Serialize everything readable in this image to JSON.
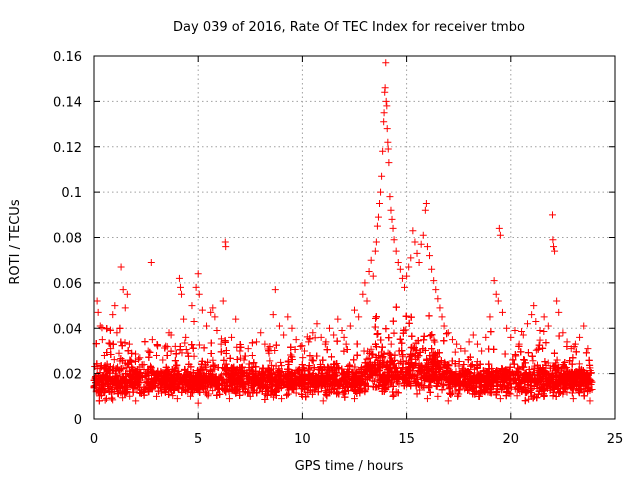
{
  "chart_data": {
    "type": "scatter",
    "title": "Day 039 of 2016, Rate Of TEC Index for receiver tmbo",
    "xlabel": "GPS time / hours",
    "ylabel": "ROTI / TECUs",
    "xlim": [
      0,
      25
    ],
    "ylim": [
      0,
      0.16
    ],
    "xticks": [
      0,
      5,
      10,
      15,
      20,
      25
    ],
    "xtick_labels": [
      "0",
      "5",
      "10",
      "15",
      "20",
      "25"
    ],
    "yticks": [
      0,
      0.02,
      0.04,
      0.06,
      0.08,
      0.1,
      0.12,
      0.14,
      0.16
    ],
    "ytick_labels": [
      "0",
      "0.02",
      "0.04",
      "0.06",
      "0.08",
      "0.1",
      "0.12",
      "0.14",
      "0.16"
    ],
    "grid": true,
    "marker": "+",
    "series_color": "#ff0000",
    "series": [
      {
        "name": "ROTI",
        "points": [
          [
            0.05,
            0.018
          ],
          [
            0.15,
            0.052
          ],
          [
            0.2,
            0.047
          ],
          [
            0.3,
            0.041
          ],
          [
            0.4,
            0.035
          ],
          [
            0.5,
            0.028
          ],
          [
            0.6,
            0.022
          ],
          [
            0.8,
            0.031
          ],
          [
            0.9,
            0.046
          ],
          [
            1.0,
            0.05
          ],
          [
            1.1,
            0.038
          ],
          [
            1.2,
            0.029
          ],
          [
            1.3,
            0.067
          ],
          [
            1.4,
            0.057
          ],
          [
            1.5,
            0.049
          ],
          [
            1.6,
            0.055
          ],
          [
            1.7,
            0.033
          ],
          [
            1.8,
            0.025
          ],
          [
            2.0,
            0.021
          ],
          [
            2.2,
            0.027
          ],
          [
            2.4,
            0.024
          ],
          [
            2.6,
            0.03
          ],
          [
            2.75,
            0.069
          ],
          [
            2.8,
            0.035
          ],
          [
            3.0,
            0.028
          ],
          [
            3.3,
            0.026
          ],
          [
            3.6,
            0.038
          ],
          [
            3.7,
            0.037
          ],
          [
            3.9,
            0.032
          ],
          [
            4.1,
            0.062
          ],
          [
            4.15,
            0.058
          ],
          [
            4.2,
            0.055
          ],
          [
            4.3,
            0.044
          ],
          [
            4.4,
            0.036
          ],
          [
            4.5,
            0.029
          ],
          [
            4.7,
            0.05
          ],
          [
            4.8,
            0.043
          ],
          [
            4.9,
            0.058
          ],
          [
            5.0,
            0.064
          ],
          [
            5.05,
            0.055
          ],
          [
            5.2,
            0.048
          ],
          [
            5.4,
            0.041
          ],
          [
            5.6,
            0.047
          ],
          [
            5.7,
            0.049
          ],
          [
            5.8,
            0.045
          ],
          [
            5.9,
            0.039
          ],
          [
            6.1,
            0.033
          ],
          [
            6.2,
            0.052
          ],
          [
            6.3,
            0.078
          ],
          [
            6.32,
            0.076
          ],
          [
            6.6,
            0.036
          ],
          [
            6.8,
            0.044
          ],
          [
            7.0,
            0.03
          ],
          [
            7.2,
            0.026
          ],
          [
            7.4,
            0.031
          ],
          [
            7.6,
            0.028
          ],
          [
            7.8,
            0.034
          ],
          [
            8.0,
            0.038
          ],
          [
            8.2,
            0.033
          ],
          [
            8.4,
            0.029
          ],
          [
            8.6,
            0.046
          ],
          [
            8.7,
            0.057
          ],
          [
            8.9,
            0.041
          ],
          [
            9.1,
            0.037
          ],
          [
            9.3,
            0.045
          ],
          [
            9.5,
            0.04
          ],
          [
            9.7,
            0.035
          ],
          [
            9.9,
            0.032
          ],
          [
            10.1,
            0.03
          ],
          [
            10.3,
            0.034
          ],
          [
            10.5,
            0.038
          ],
          [
            10.7,
            0.042
          ],
          [
            10.9,
            0.036
          ],
          [
            11.1,
            0.033
          ],
          [
            11.3,
            0.04
          ],
          [
            11.5,
            0.037
          ],
          [
            11.7,
            0.044
          ],
          [
            11.9,
            0.039
          ],
          [
            12.0,
            0.036
          ],
          [
            12.1,
            0.033
          ],
          [
            12.3,
            0.041
          ],
          [
            12.5,
            0.048
          ],
          [
            12.7,
            0.045
          ],
          [
            12.9,
            0.055
          ],
          [
            13.0,
            0.06
          ],
          [
            13.1,
            0.052
          ],
          [
            13.2,
            0.065
          ],
          [
            13.3,
            0.07
          ],
          [
            13.4,
            0.063
          ],
          [
            13.5,
            0.074
          ],
          [
            13.55,
            0.078
          ],
          [
            13.6,
            0.085
          ],
          [
            13.65,
            0.089
          ],
          [
            13.7,
            0.095
          ],
          [
            13.75,
            0.1
          ],
          [
            13.8,
            0.107
          ],
          [
            13.85,
            0.118
          ],
          [
            13.9,
            0.131
          ],
          [
            13.92,
            0.135
          ],
          [
            13.95,
            0.144
          ],
          [
            13.97,
            0.146
          ],
          [
            14.0,
            0.157
          ],
          [
            14.02,
            0.14
          ],
          [
            14.05,
            0.138
          ],
          [
            14.07,
            0.128
          ],
          [
            14.1,
            0.122
          ],
          [
            14.12,
            0.119
          ],
          [
            14.15,
            0.113
          ],
          [
            14.2,
            0.098
          ],
          [
            14.25,
            0.092
          ],
          [
            14.3,
            0.088
          ],
          [
            14.35,
            0.084
          ],
          [
            14.4,
            0.079
          ],
          [
            14.5,
            0.074
          ],
          [
            14.6,
            0.069
          ],
          [
            14.7,
            0.066
          ],
          [
            14.8,
            0.062
          ],
          [
            14.9,
            0.058
          ],
          [
            15.0,
            0.063
          ],
          [
            15.1,
            0.067
          ],
          [
            15.2,
            0.071
          ],
          [
            15.3,
            0.083
          ],
          [
            15.4,
            0.078
          ],
          [
            15.5,
            0.073
          ],
          [
            15.6,
            0.069
          ],
          [
            15.7,
            0.077
          ],
          [
            15.8,
            0.081
          ],
          [
            15.9,
            0.092
          ],
          [
            15.95,
            0.095
          ],
          [
            16.0,
            0.076
          ],
          [
            16.1,
            0.072
          ],
          [
            16.2,
            0.066
          ],
          [
            16.3,
            0.061
          ],
          [
            16.4,
            0.057
          ],
          [
            16.5,
            0.053
          ],
          [
            16.6,
            0.049
          ],
          [
            16.7,
            0.045
          ],
          [
            16.8,
            0.041
          ],
          [
            17.0,
            0.038
          ],
          [
            17.2,
            0.035
          ],
          [
            17.4,
            0.033
          ],
          [
            17.6,
            0.031
          ],
          [
            17.8,
            0.03
          ],
          [
            18.0,
            0.034
          ],
          [
            18.2,
            0.037
          ],
          [
            18.4,
            0.033
          ],
          [
            18.6,
            0.03
          ],
          [
            18.8,
            0.036
          ],
          [
            19.0,
            0.045
          ],
          [
            19.2,
            0.061
          ],
          [
            19.3,
            0.055
          ],
          [
            19.4,
            0.052
          ],
          [
            19.45,
            0.084
          ],
          [
            19.5,
            0.081
          ],
          [
            19.6,
            0.047
          ],
          [
            19.8,
            0.04
          ],
          [
            20.0,
            0.036
          ],
          [
            20.2,
            0.039
          ],
          [
            20.4,
            0.033
          ],
          [
            20.6,
            0.037
          ],
          [
            20.8,
            0.042
          ],
          [
            21.0,
            0.046
          ],
          [
            21.1,
            0.05
          ],
          [
            21.2,
            0.043
          ],
          [
            21.4,
            0.039
          ],
          [
            21.6,
            0.045
          ],
          [
            21.8,
            0.041
          ],
          [
            22.0,
            0.09
          ],
          [
            22.02,
            0.079
          ],
          [
            22.05,
            0.076
          ],
          [
            22.1,
            0.074
          ],
          [
            22.2,
            0.052
          ],
          [
            22.3,
            0.047
          ],
          [
            22.5,
            0.038
          ],
          [
            22.7,
            0.034
          ],
          [
            22.9,
            0.031
          ],
          [
            23.1,
            0.033
          ],
          [
            23.3,
            0.036
          ],
          [
            23.5,
            0.041
          ],
          [
            23.7,
            0.031
          ],
          [
            0.3,
            0.012
          ],
          [
            0.6,
            0.009
          ],
          [
            1.0,
            0.014
          ],
          [
            1.5,
            0.011
          ],
          [
            2.0,
            0.008
          ],
          [
            2.5,
            0.013
          ],
          [
            3.0,
            0.01
          ],
          [
            3.5,
            0.015
          ],
          [
            4.0,
            0.009
          ],
          [
            4.5,
            0.012
          ],
          [
            5.0,
            0.007
          ],
          [
            5.5,
            0.011
          ],
          [
            6.0,
            0.013
          ],
          [
            6.5,
            0.009
          ],
          [
            7.0,
            0.012
          ],
          [
            7.5,
            0.01
          ],
          [
            8.0,
            0.014
          ],
          [
            8.5,
            0.011
          ],
          [
            9.0,
            0.009
          ],
          [
            9.5,
            0.013
          ],
          [
            10.0,
            0.01
          ],
          [
            10.5,
            0.012
          ],
          [
            11.0,
            0.008
          ],
          [
            11.5,
            0.013
          ],
          [
            12.0,
            0.011
          ],
          [
            12.5,
            0.009
          ],
          [
            13.0,
            0.012
          ],
          [
            13.5,
            0.014
          ],
          [
            14.0,
            0.013
          ],
          [
            14.5,
            0.012
          ],
          [
            15.0,
            0.015
          ],
          [
            15.5,
            0.011
          ],
          [
            16.0,
            0.009
          ],
          [
            16.5,
            0.01
          ],
          [
            17.0,
            0.008
          ],
          [
            17.5,
            0.011
          ],
          [
            18.0,
            0.013
          ],
          [
            18.5,
            0.01
          ],
          [
            19.0,
            0.012
          ],
          [
            19.5,
            0.009
          ],
          [
            20.0,
            0.011
          ],
          [
            20.5,
            0.013
          ],
          [
            21.0,
            0.01
          ],
          [
            21.5,
            0.012
          ],
          [
            22.0,
            0.014
          ],
          [
            22.5,
            0.011
          ],
          [
            23.0,
            0.009
          ],
          [
            23.5,
            0.012
          ],
          [
            23.8,
            0.008
          ],
          [
            23.9,
            0.013
          ]
        ]
      }
    ]
  }
}
